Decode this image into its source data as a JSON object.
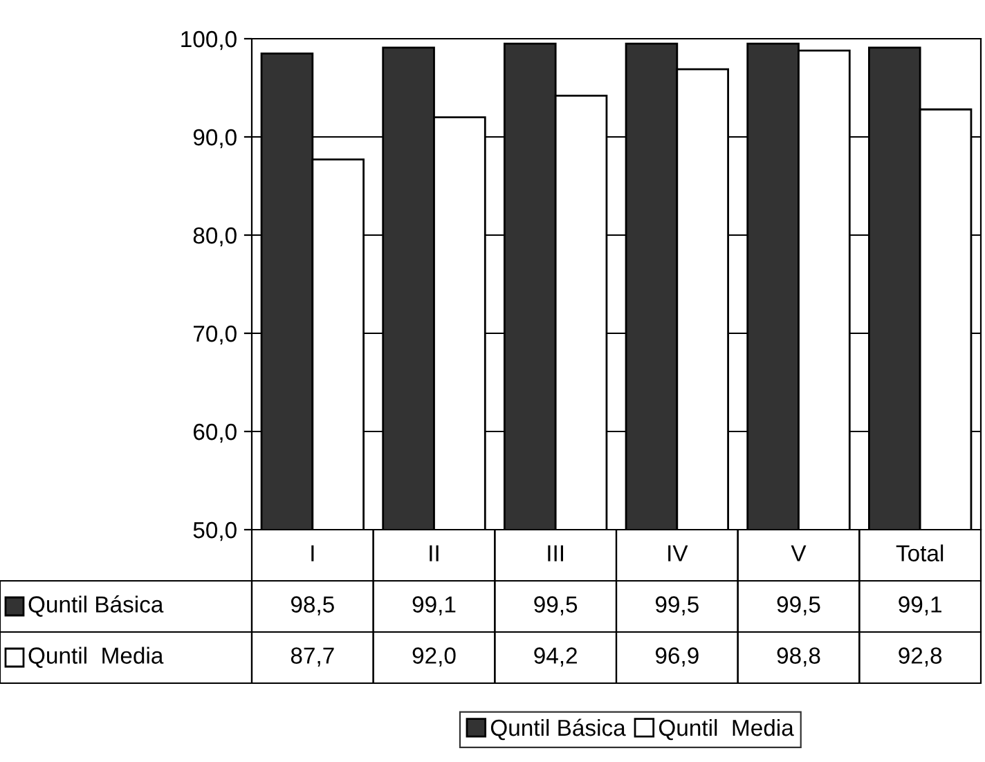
{
  "chart_data": {
    "type": "bar",
    "categories": [
      "I",
      "II",
      "III",
      "IV",
      "V",
      "Total"
    ],
    "series": [
      {
        "name": "Quntil Básica",
        "color": "#333333",
        "values": [
          98.5,
          99.1,
          99.5,
          99.5,
          99.5,
          99.1
        ],
        "value_labels": [
          "98,5",
          "99,1",
          "99,5",
          "99,5",
          "99,5",
          "99,1"
        ]
      },
      {
        "name": "Quntil  Media",
        "color": "#ffffff",
        "values": [
          87.7,
          92.0,
          94.2,
          96.9,
          98.8,
          92.8
        ],
        "value_labels": [
          "87,7",
          "92,0",
          "94,2",
          "96,9",
          "98,8",
          "92,8"
        ]
      }
    ],
    "ylim": [
      50,
      100
    ],
    "yticks": [
      {
        "value": 50,
        "label": "50,0"
      },
      {
        "value": 60,
        "label": "60,0"
      },
      {
        "value": 70,
        "label": "70,0"
      },
      {
        "value": 80,
        "label": "80,0"
      },
      {
        "value": 90,
        "label": "90,0"
      },
      {
        "value": 100,
        "label": "100,0"
      }
    ],
    "grid": "y",
    "legend": "bottom"
  }
}
